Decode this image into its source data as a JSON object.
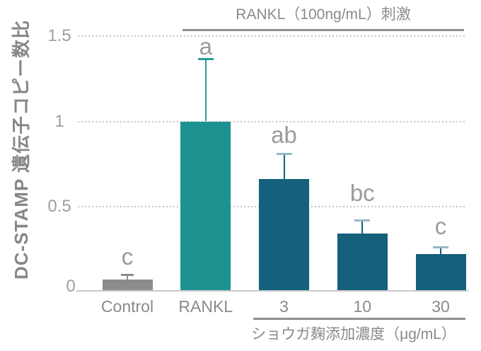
{
  "chart_data": {
    "type": "bar",
    "title": "",
    "ylabel": "DC-STAMP 遺伝子コピー数比",
    "xlabel": "",
    "categories": [
      "Control",
      "RANKL",
      "3",
      "10",
      "30"
    ],
    "values": [
      0.07,
      1.0,
      0.66,
      0.34,
      0.22
    ],
    "error_plus": [
      0.03,
      0.37,
      0.15,
      0.08,
      0.04
    ],
    "sig_letters": [
      "c",
      "a",
      "ab",
      "bc",
      "c"
    ],
    "yticks": [
      0,
      0.5,
      1,
      1.5
    ],
    "ytick_labels": [
      "0",
      "0.5",
      "1",
      "1.5"
    ],
    "ylim": [
      0,
      1.53
    ],
    "grid": "horizontal-dashed",
    "legend": "none",
    "bar_colors": [
      "#8c8c8c",
      "#1e9290",
      "#15607a",
      "#15607a",
      "#15607a"
    ],
    "error_stem_colors": [
      "#8c8c8c",
      "#2a9d98",
      "#15607a",
      "#15607a",
      "#15607a"
    ],
    "error_cap_colors": [
      "#8c8c8c",
      "#2a9d98",
      "#96b9c6",
      "#96b9c6",
      "#96b9c6"
    ],
    "annotations": {
      "top": {
        "label": "RANKL（100ng/mL）刺激",
        "applies_to": [
          "RANKL",
          "3",
          "10",
          "30"
        ]
      },
      "bottom": {
        "label": "ショウガ麹添加濃度（μg/mL）",
        "applies_to": [
          "3",
          "10",
          "30"
        ]
      }
    },
    "colors": {
      "gridline": "#c6c6c6",
      "axis_line": "#c8c8c8",
      "annotation_line": "#8f8f8f",
      "tick_text": "#9e9e9e",
      "category_text": "#8a8a8a",
      "sig_letter_text": "#9b9b9b",
      "ylabel_text": "#878787"
    }
  }
}
